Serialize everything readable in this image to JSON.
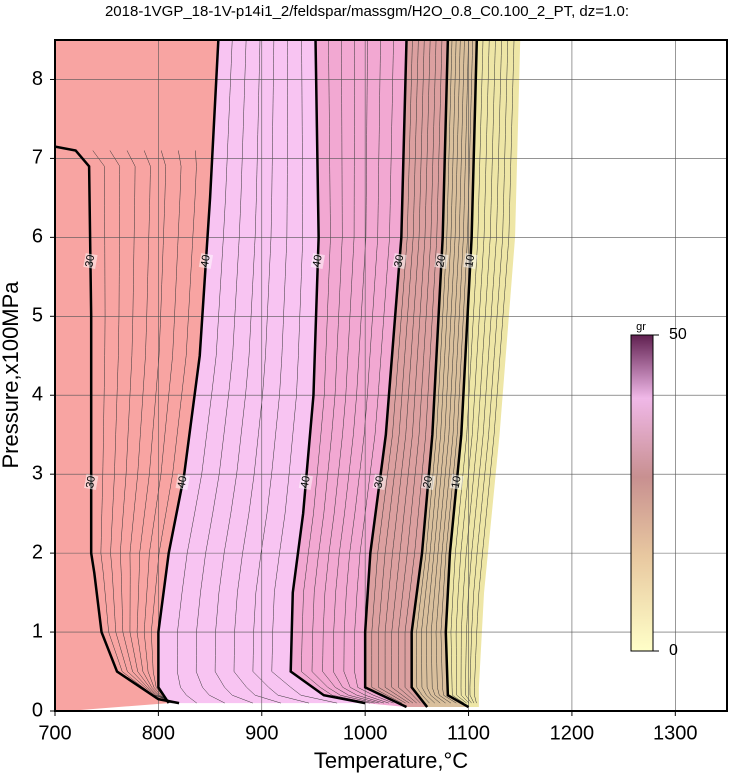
{
  "chart_data": {
    "type": "contour",
    "title": "2018-1VGP_18-1V-p14i1_2/feldspar/massgm/H2O_0.8_C0.100_2_PT, dz=1.0:",
    "x_label": "Temperature,°C",
    "y_label": "Pressure,x100MPa",
    "xlim": [
      700,
      1350
    ],
    "ylim": [
      0,
      8.5
    ],
    "xticks": [
      700,
      800,
      900,
      1000,
      1100,
      1200,
      1300
    ],
    "yticks": [
      0,
      1,
      2,
      3,
      4,
      5,
      6,
      7,
      8
    ],
    "grid": true,
    "contours": [
      {
        "level": 30,
        "x": [
          700,
          720,
          733,
          735,
          735,
          738,
          745,
          760,
          800,
          820
        ],
        "y": [
          7.15,
          7.1,
          6.9,
          5,
          2,
          1.75,
          1.0,
          0.5,
          0.15,
          0.1
        ]
      },
      {
        "level": 40,
        "fill": "#f8a4a2",
        "x": [
          858,
          850,
          840,
          825,
          810,
          800,
          800,
          810
        ],
        "y": [
          8.5,
          6.5,
          4.5,
          3,
          2,
          1,
          0.3,
          0.1
        ]
      },
      {
        "level": 40,
        "fill": "#f8c4f2",
        "x": [
          952,
          955,
          950,
          940,
          930,
          928,
          960,
          1000
        ],
        "y": [
          8.5,
          6,
          4,
          2.5,
          1.5,
          0.5,
          0.2,
          0.1
        ]
      },
      {
        "level": 30,
        "fill": "#f2a8d2",
        "x": [
          1040,
          1035,
          1020,
          1005,
          1000,
          1000,
          1040
        ],
        "y": [
          8.5,
          6,
          3.5,
          2,
          1,
          0.3,
          0.05
        ]
      },
      {
        "level": 20,
        "fill": "#dca0a0",
        "x": [
          1080,
          1075,
          1065,
          1055,
          1045,
          1045,
          1060
        ],
        "y": [
          8.5,
          6,
          3.5,
          2,
          1,
          0.3,
          0.05
        ]
      },
      {
        "level": 10,
        "fill": "#d9bf9c",
        "x": [
          1108,
          1103,
          1093,
          1082,
          1078,
          1080,
          1100
        ],
        "y": [
          8.5,
          6,
          3.5,
          2,
          1,
          0.2,
          0.05
        ]
      },
      {
        "fill": "#eee6a6",
        "x": [
          1150,
          1145,
          1130,
          1115,
          1110,
          1110
        ],
        "y": [
          8.5,
          6,
          3.5,
          1.5,
          0.3,
          0.05
        ]
      }
    ],
    "colorbar": {
      "label": "gr",
      "lim": [
        0,
        50
      ],
      "ticks": [
        0,
        50
      ]
    }
  }
}
